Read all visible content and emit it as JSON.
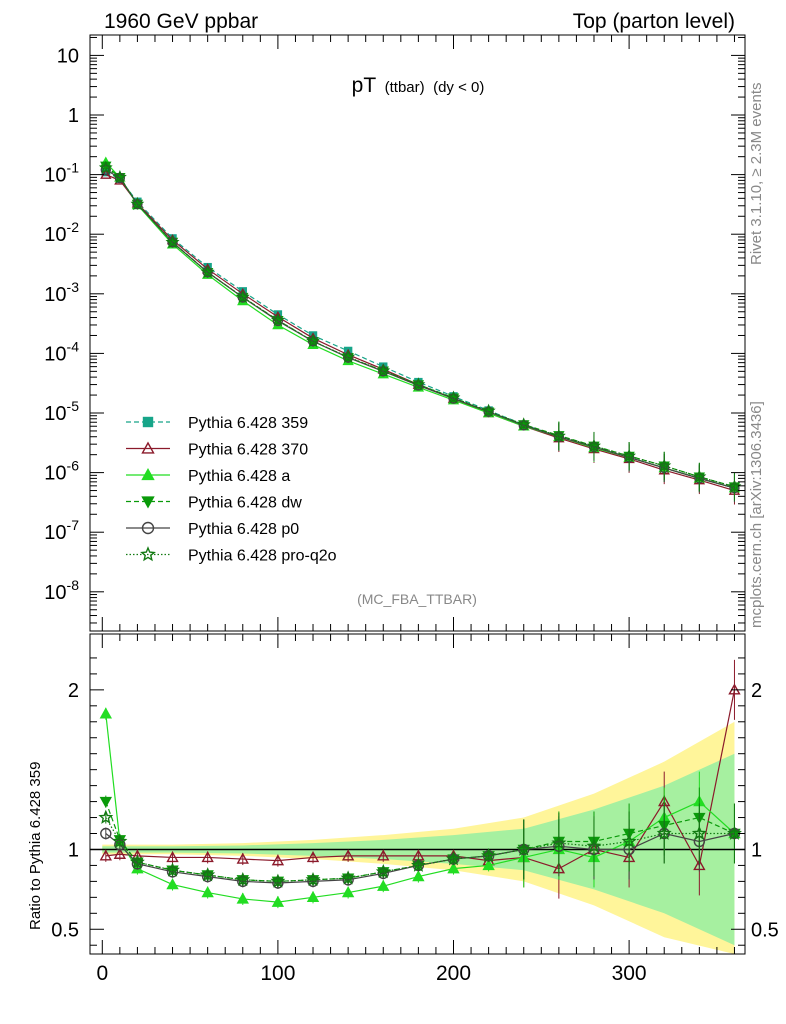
{
  "header": {
    "left": "1960 GeV ppbar",
    "right": "Top (parton level)"
  },
  "plot": {
    "title_main": "pT",
    "title_sub": "(ttbar)",
    "title_cond": "(dy < 0)",
    "watermark": "(MC_FBA_TTBAR)",
    "side_label_top": "Rivet 3.1.10, ≥ 2.3M events",
    "side_label_bottom": "mcplots.cern.ch [arXiv:1306.3436]",
    "ratio_ylabel": "Ratio to Pythia 6.428 359"
  },
  "chart_data": [
    {
      "type": "scatter",
      "panel": "main",
      "yscale": "log",
      "xlim": [
        -7,
        366
      ],
      "ylim": [
        2.2e-09,
        22
      ],
      "x_ticks": [
        0,
        100,
        200,
        300
      ],
      "y_tick_labels": [
        "10",
        "1",
        "10^-1",
        "10^-2",
        "10^-3",
        "10^-4",
        "10^-5",
        "10^-6",
        "10^-7",
        "10^-8"
      ],
      "legend_position": "lower-left",
      "series": [
        {
          "name": "Pythia 6.428 359",
          "color": "#17a589",
          "marker": "square",
          "line": "dashed",
          "x": [
            2,
            10,
            20,
            40,
            60,
            80,
            100,
            120,
            140,
            160,
            180,
            200,
            220,
            240,
            260,
            280,
            300,
            320,
            340,
            360
          ],
          "y": [
            0.11,
            0.085,
            0.035,
            0.0085,
            0.0028,
            0.0011,
            0.00045,
            0.0002,
            0.00011,
            6e-05,
            3.3e-05,
            1.9e-05,
            1.1e-05,
            6.4e-06,
            4e-06,
            2.7e-06,
            1.8e-06,
            1.2e-06,
            8e-07,
            5.5e-07
          ]
        },
        {
          "name": "Pythia 6.428 370",
          "color": "#8b1a2b",
          "marker": "open-triangle",
          "line": "solid",
          "x": [
            2,
            10,
            20,
            40,
            60,
            80,
            100,
            120,
            140,
            160,
            180,
            200,
            220,
            240,
            260,
            280,
            300,
            320,
            340,
            360
          ],
          "y": [
            0.1,
            0.08,
            0.033,
            0.008,
            0.0026,
            0.001,
            0.00041,
            0.00018,
            9.5e-05,
            5.4e-05,
            3e-05,
            1.75e-05,
            1e-05,
            6e-06,
            3.8e-06,
            2.5e-06,
            1.7e-06,
            1.1e-06,
            7.5e-07,
            5e-07
          ]
        },
        {
          "name": "Pythia 6.428 a",
          "color": "#22dd22",
          "marker": "triangle",
          "line": "solid",
          "x": [
            2,
            10,
            20,
            40,
            60,
            80,
            100,
            120,
            140,
            160,
            180,
            200,
            220,
            240,
            260,
            280,
            300,
            320,
            340,
            360
          ],
          "y": [
            0.16,
            0.09,
            0.031,
            0.0068,
            0.0021,
            0.00076,
            0.0003,
            0.00014,
            7.5e-05,
            4.5e-05,
            2.7e-05,
            1.65e-05,
            1e-05,
            6e-06,
            4e-06,
            2.6e-06,
            1.8e-06,
            1.2e-06,
            8e-07,
            5.5e-07
          ]
        },
        {
          "name": "Pythia 6.428 dw",
          "color": "#0a9a0a",
          "marker": "down-triangle",
          "line": "dashed",
          "x": [
            2,
            10,
            20,
            40,
            60,
            80,
            100,
            120,
            140,
            160,
            180,
            200,
            220,
            240,
            260,
            280,
            300,
            320,
            340,
            360
          ],
          "y": [
            0.14,
            0.09,
            0.032,
            0.0074,
            0.0023,
            0.00088,
            0.00036,
            0.00016,
            8.6e-05,
            5.1e-05,
            3e-05,
            1.8e-05,
            1.05e-05,
            6.4e-06,
            4.2e-06,
            2.8e-06,
            1.9e-06,
            1.3e-06,
            8.5e-07,
            5.8e-07
          ]
        },
        {
          "name": "Pythia 6.428 p0",
          "color": "#444444",
          "marker": "open-circle",
          "line": "solid",
          "x": [
            2,
            10,
            20,
            40,
            60,
            80,
            100,
            120,
            140,
            160,
            180,
            200,
            220,
            240,
            260,
            280,
            300,
            320,
            340,
            360
          ],
          "y": [
            0.12,
            0.088,
            0.032,
            0.0073,
            0.0023,
            0.00087,
            0.00035,
            0.00016,
            8.5e-05,
            5e-05,
            2.9e-05,
            1.75e-05,
            1.05e-05,
            6.2e-06,
            4e-06,
            2.7e-06,
            1.8e-06,
            1.2e-06,
            8e-07,
            5.5e-07
          ]
        },
        {
          "name": "Pythia 6.428 pro-q2o",
          "color": "#127a12",
          "marker": "open-star",
          "line": "dotted",
          "x": [
            2,
            10,
            20,
            40,
            60,
            80,
            100,
            120,
            140,
            160,
            180,
            200,
            220,
            240,
            260,
            280,
            300,
            320,
            340,
            360
          ],
          "y": [
            0.13,
            0.09,
            0.032,
            0.0073,
            0.0023,
            0.00088,
            0.00036,
            0.00016,
            8.7e-05,
            5.1e-05,
            3e-05,
            1.8e-05,
            1.08e-05,
            6.4e-06,
            4.1e-06,
            2.8e-06,
            1.9e-06,
            1.3e-06,
            8.5e-07,
            5.8e-07
          ]
        }
      ]
    },
    {
      "type": "scatter",
      "panel": "ratio",
      "xlim": [
        -7,
        366
      ],
      "ylim": [
        0.345,
        2.35
      ],
      "x_ticks": [
        0,
        100,
        200,
        300
      ],
      "y_ticks": [
        0.5,
        1,
        2
      ],
      "reference": 1,
      "uncertainty_band": {
        "x": [
          0,
          40,
          80,
          120,
          160,
          200,
          240,
          280,
          320,
          360
        ],
        "yellow_half_width": [
          0.03,
          0.03,
          0.04,
          0.06,
          0.09,
          0.13,
          0.2,
          0.35,
          0.55,
          0.8
        ],
        "green_half_width": [
          0.02,
          0.02,
          0.025,
          0.04,
          0.06,
          0.09,
          0.13,
          0.25,
          0.4,
          0.6
        ]
      },
      "series": [
        {
          "name": "Pythia 6.428 370",
          "color": "#8b1a2b",
          "marker": "open-triangle",
          "x": [
            2,
            10,
            20,
            40,
            60,
            80,
            100,
            120,
            140,
            160,
            180,
            200,
            220,
            240,
            260,
            280,
            300,
            320,
            340,
            360
          ],
          "y": [
            0.96,
            0.97,
            0.96,
            0.95,
            0.95,
            0.94,
            0.93,
            0.95,
            0.96,
            0.96,
            0.96,
            0.96,
            0.93,
            0.95,
            0.88,
            1.0,
            0.95,
            1.3,
            0.9,
            2.0
          ]
        },
        {
          "name": "Pythia 6.428 a",
          "color": "#22dd22",
          "marker": "triangle",
          "x": [
            2,
            10,
            20,
            40,
            60,
            80,
            100,
            120,
            140,
            160,
            180,
            200,
            220,
            240,
            260,
            280,
            300,
            320,
            340,
            360
          ],
          "y": [
            1.85,
            1.05,
            0.88,
            0.78,
            0.73,
            0.69,
            0.67,
            0.7,
            0.73,
            0.77,
            0.83,
            0.88,
            0.9,
            0.95,
            1.0,
            0.95,
            1.05,
            1.2,
            1.3,
            1.1
          ]
        },
        {
          "name": "Pythia 6.428 dw",
          "color": "#0a9a0a",
          "marker": "down-triangle",
          "x": [
            2,
            10,
            20,
            40,
            60,
            80,
            100,
            120,
            140,
            160,
            180,
            200,
            220,
            240,
            260,
            280,
            300,
            320,
            340,
            360
          ],
          "y": [
            1.3,
            1.06,
            0.92,
            0.87,
            0.84,
            0.81,
            0.8,
            0.81,
            0.82,
            0.86,
            0.9,
            0.94,
            0.96,
            1.0,
            1.05,
            1.05,
            1.1,
            1.15,
            1.2,
            1.1
          ]
        },
        {
          "name": "Pythia 6.428 p0",
          "color": "#444444",
          "marker": "open-circle",
          "x": [
            2,
            10,
            20,
            40,
            60,
            80,
            100,
            120,
            140,
            160,
            180,
            200,
            220,
            240,
            260,
            280,
            300,
            320,
            340,
            360
          ],
          "y": [
            1.1,
            1.03,
            0.91,
            0.86,
            0.83,
            0.8,
            0.79,
            0.8,
            0.81,
            0.85,
            0.9,
            0.94,
            0.96,
            1.0,
            1.02,
            1.0,
            1.0,
            1.1,
            1.05,
            1.1
          ]
        },
        {
          "name": "Pythia 6.428 pro-q2o",
          "color": "#127a12",
          "marker": "open-star",
          "x": [
            2,
            10,
            20,
            40,
            60,
            80,
            100,
            120,
            140,
            160,
            180,
            200,
            220,
            240,
            260,
            280,
            300,
            320,
            340,
            360
          ],
          "y": [
            1.2,
            1.05,
            0.92,
            0.87,
            0.84,
            0.81,
            0.8,
            0.81,
            0.82,
            0.86,
            0.9,
            0.94,
            0.96,
            1.0,
            1.04,
            1.02,
            1.05,
            1.1,
            1.1,
            1.1
          ]
        }
      ]
    }
  ]
}
